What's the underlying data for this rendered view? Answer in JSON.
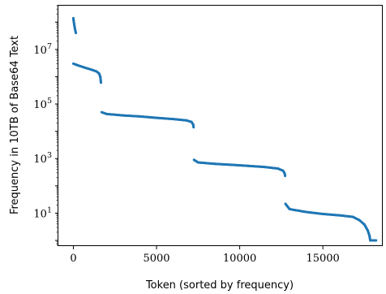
{
  "chart_data": {
    "type": "scatter",
    "title": "",
    "xlabel": "Token (sorted by frequency)",
    "ylabel": "Frequency in 10TB of Base64 Text",
    "xlim": [
      -900,
      18600
    ],
    "ylim": [
      0.62,
      400000000
    ],
    "y_scale": "log",
    "grid": false,
    "x_ticks": [
      {
        "value": 0,
        "label": "0"
      },
      {
        "value": 5000,
        "label": "5000"
      },
      {
        "value": 10000,
        "label": "10000"
      },
      {
        "value": 15000,
        "label": "15000"
      }
    ],
    "y_ticks": [
      {
        "value": 10,
        "base": "10",
        "exp": "1"
      },
      {
        "value": 1000,
        "base": "10",
        "exp": "3"
      },
      {
        "value": 100000,
        "base": "10",
        "exp": "5"
      },
      {
        "value": 10000000,
        "base": "10",
        "exp": "7"
      }
    ],
    "series": [
      {
        "color": "#1f77b4",
        "segments": [
          {
            "x": [
              0,
              20,
              60,
              100,
              150
            ],
            "y": [
              140000000,
              110000000,
              75000000,
              55000000,
              40000000
            ]
          },
          {
            "x": [
              0,
              200,
              500,
              800,
              1100,
              1400,
              1550,
              1620,
              1660
            ],
            "y": [
              3000000,
              2700000,
              2350000,
              2050000,
              1800000,
              1550000,
              1300000,
              1000000,
              600000
            ]
          },
          {
            "x": [
              1700,
              2000,
              3000,
              4000,
              5000,
              6000,
              6800,
              7100,
              7200,
              7230
            ],
            "y": [
              50000,
              43000,
              38000,
              35000,
              31000,
              28000,
              25000,
              22000,
              18000,
              14000
            ]
          },
          {
            "x": [
              7250,
              7500,
              8500,
              9500,
              10500,
              11500,
              12300,
              12600,
              12700,
              12730
            ],
            "y": [
              900,
              720,
              640,
              590,
              540,
              490,
              430,
              360,
              290,
              230
            ]
          },
          {
            "x": [
              12750,
              13000,
              14000,
              15000,
              16000,
              16800,
              17200,
              17500,
              17700,
              17800,
              17850
            ],
            "y": [
              22,
              14,
              11,
              9.3,
              8.3,
              7.3,
              5.5,
              3.8,
              2.3,
              1.5,
              1
            ]
          },
          {
            "x": [
              17850,
              17900,
              18000,
              18100,
              18150,
              18200
            ],
            "y": [
              1,
              1,
              1,
              1,
              1,
              1
            ]
          }
        ]
      }
    ]
  }
}
